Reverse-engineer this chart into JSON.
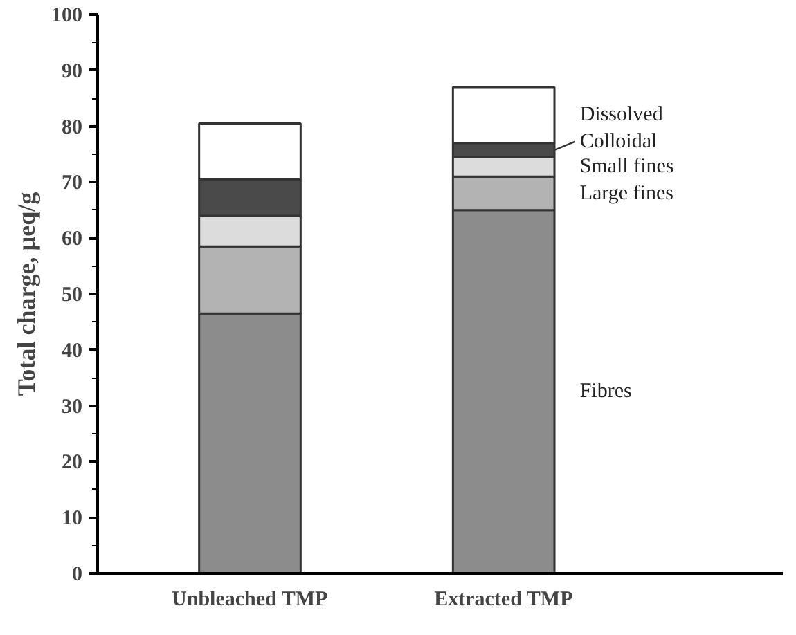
{
  "chart_data": {
    "type": "bar",
    "stacked": true,
    "ylabel": "Total charge, µeq/g",
    "categories": [
      "Unbleached TMP",
      "Extracted TMP"
    ],
    "ylim": [
      0,
      100
    ],
    "yticks": [
      0,
      10,
      20,
      30,
      40,
      50,
      60,
      70,
      80,
      90,
      100
    ],
    "legend": false,
    "grid": false,
    "series": [
      {
        "name": "Fibres",
        "color": "#8c8c8c",
        "values": [
          46.5,
          65
        ]
      },
      {
        "name": "Large fines",
        "color": "#b3b3b3",
        "values": [
          12,
          6
        ]
      },
      {
        "name": "Small fines",
        "color": "#dcdcdc",
        "values": [
          5.5,
          3.5
        ]
      },
      {
        "name": "Colloidal",
        "color": "#4a4a4a",
        "values": [
          6.5,
          2.5
        ]
      },
      {
        "name": "Dissolved",
        "color": "#ffffff",
        "values": [
          10,
          10
        ]
      }
    ]
  }
}
